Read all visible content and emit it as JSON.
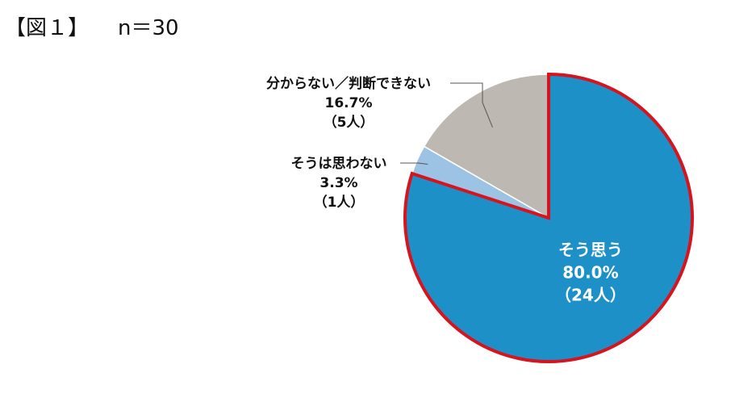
{
  "header": {
    "figure_label": "【図１】",
    "sample_size": "n＝30"
  },
  "colors": {
    "outline_accent": "#d7141e",
    "slice_borders": "#ffffff",
    "leader_lines": "#555555"
  },
  "chart_data": {
    "type": "pie",
    "start": "top",
    "direction": "clockwise",
    "slices": [
      {
        "label": "そう思う",
        "value": 80.0,
        "percent_text": "80.0%",
        "count_text": "（24人）",
        "color": "#1e90c8",
        "highlighted": true,
        "label_position": "inside"
      },
      {
        "label": "そうは思わない",
        "value": 3.3,
        "percent_text": "3.3%",
        "count_text": "（1人）",
        "color": "#9cc3e4",
        "highlighted": false,
        "label_position": "outside-left"
      },
      {
        "label": "分からない／判断できない",
        "value": 16.7,
        "percent_text": "16.7%",
        "count_text": "（5人）",
        "color": "#bdb8b2",
        "highlighted": false,
        "label_position": "outside-left"
      }
    ]
  }
}
